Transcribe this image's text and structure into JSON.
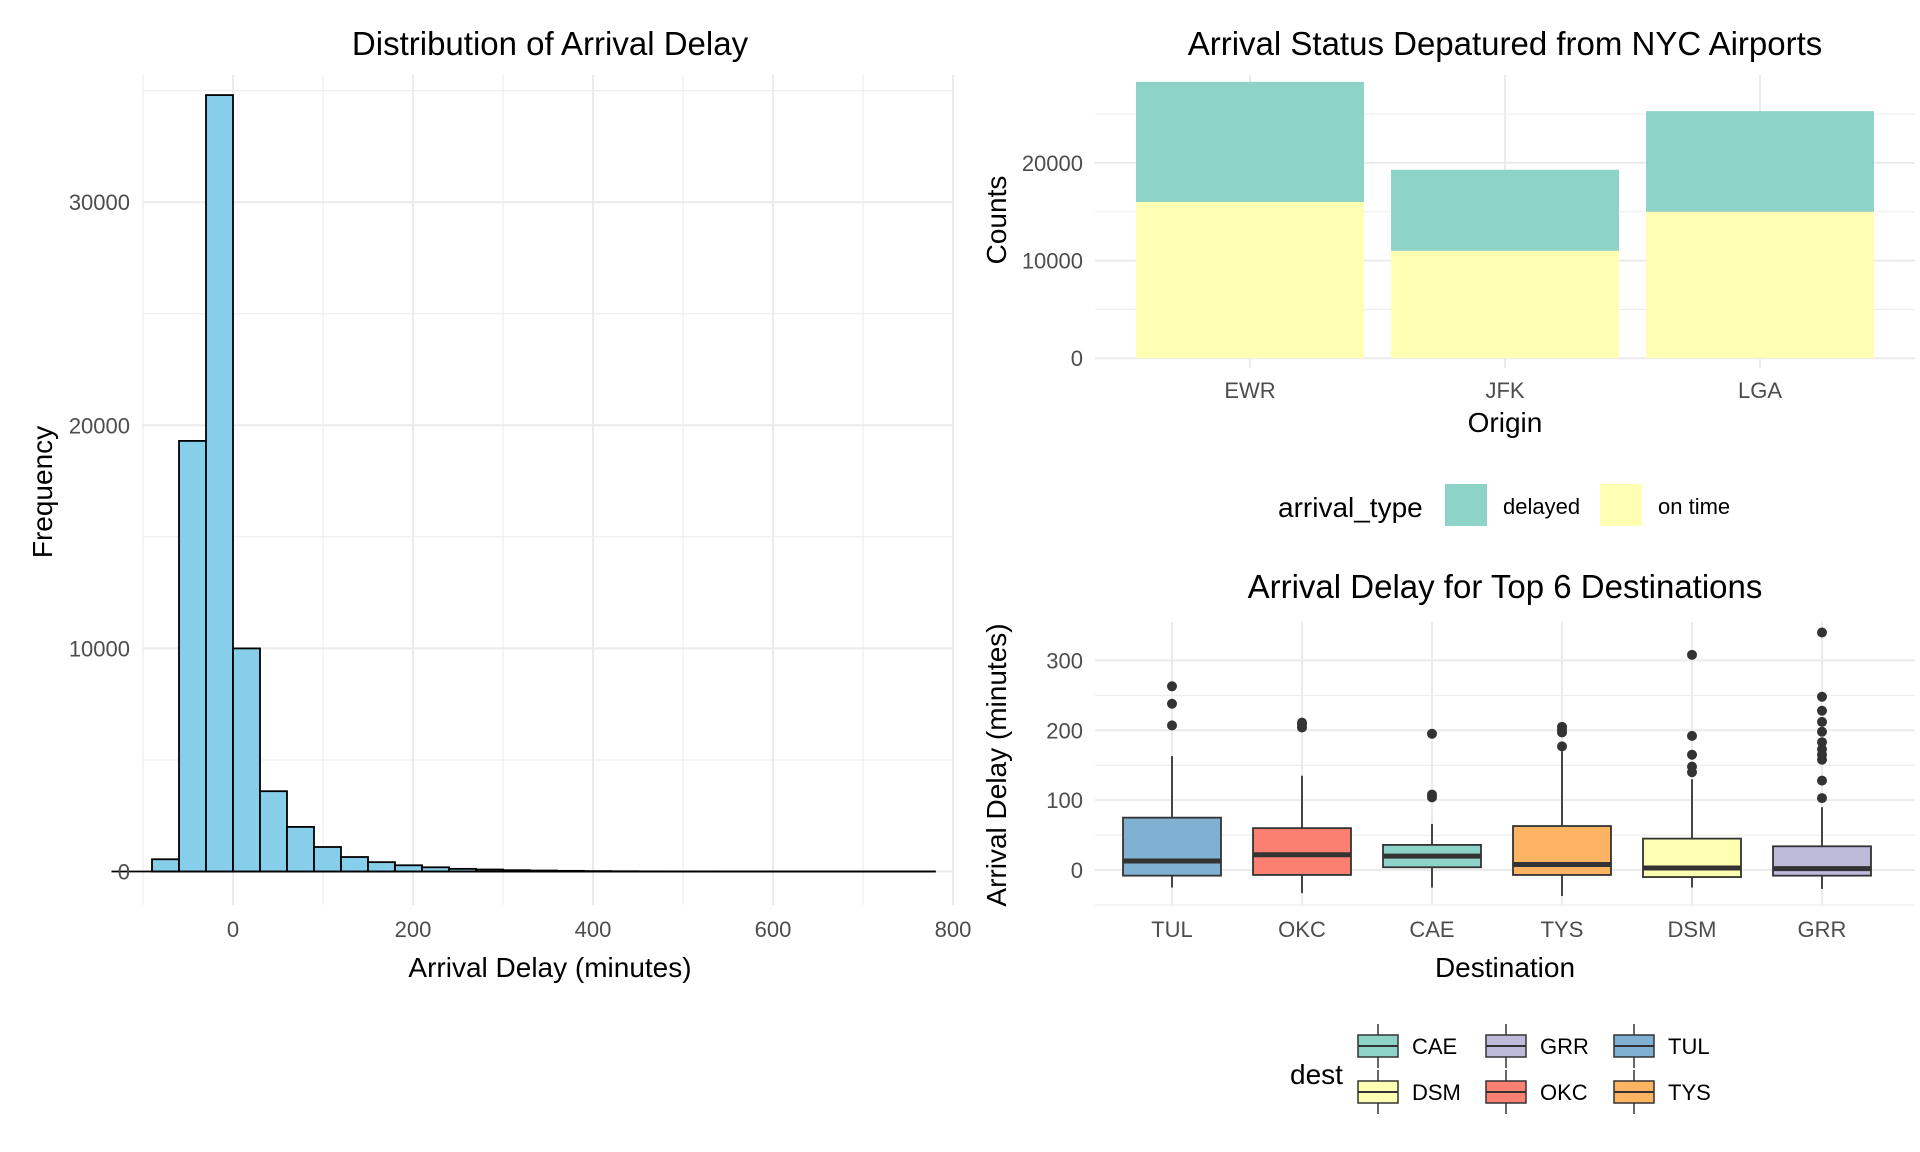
{
  "chart_data": [
    {
      "type": "histogram",
      "title": "Distribution of Arrival Delay",
      "xlabel": "Arrival Delay (minutes)",
      "ylabel": "Frequency",
      "xlim": [
        -100,
        800
      ],
      "ylim": [
        0,
        35000
      ],
      "x_ticks": [
        0,
        200,
        400,
        600,
        800
      ],
      "y_ticks": [
        0,
        10000,
        20000,
        30000
      ],
      "fill_color": "#87CEEB",
      "grid": true,
      "bins": [
        {
          "x0": -90,
          "x1": -60,
          "count": 550
        },
        {
          "x0": -60,
          "x1": -30,
          "count": 19300
        },
        {
          "x0": -30,
          "x1": 0,
          "count": 34800
        },
        {
          "x0": 0,
          "x1": 30,
          "count": 10000
        },
        {
          "x0": 30,
          "x1": 60,
          "count": 3600
        },
        {
          "x0": 60,
          "x1": 90,
          "count": 2000
        },
        {
          "x0": 90,
          "x1": 120,
          "count": 1100
        },
        {
          "x0": 120,
          "x1": 150,
          "count": 650
        },
        {
          "x0": 150,
          "x1": 180,
          "count": 420
        },
        {
          "x0": 180,
          "x1": 210,
          "count": 280
        },
        {
          "x0": 210,
          "x1": 240,
          "count": 190
        },
        {
          "x0": 240,
          "x1": 270,
          "count": 120
        },
        {
          "x0": 270,
          "x1": 300,
          "count": 90
        },
        {
          "x0": 300,
          "x1": 330,
          "count": 60
        },
        {
          "x0": 330,
          "x1": 360,
          "count": 45
        },
        {
          "x0": 360,
          "x1": 390,
          "count": 30
        },
        {
          "x0": 390,
          "x1": 420,
          "count": 20
        },
        {
          "x0": 420,
          "x1": 450,
          "count": 12
        },
        {
          "x0": 450,
          "x1": 480,
          "count": 8
        },
        {
          "x0": 480,
          "x1": 510,
          "count": 5
        },
        {
          "x0": 510,
          "x1": 540,
          "count": 4
        },
        {
          "x0": 540,
          "x1": 570,
          "count": 3
        },
        {
          "x0": 570,
          "x1": 600,
          "count": 2
        },
        {
          "x0": 600,
          "x1": 630,
          "count": 2
        },
        {
          "x0": 630,
          "x1": 660,
          "count": 1
        },
        {
          "x0": 660,
          "x1": 690,
          "count": 1
        },
        {
          "x0": 690,
          "x1": 720,
          "count": 1
        },
        {
          "x0": 720,
          "x1": 750,
          "count": 1
        },
        {
          "x0": 750,
          "x1": 780,
          "count": 1
        }
      ]
    },
    {
      "type": "bar",
      "stacked": true,
      "title": "Arrival Status Depatured from NYC Airports",
      "xlabel": "Origin",
      "ylabel": "Counts",
      "categories": [
        "EWR",
        "JFK",
        "LGA"
      ],
      "ylim": [
        0,
        28500
      ],
      "y_ticks": [
        0,
        10000,
        20000
      ],
      "series": [
        {
          "name": "on time",
          "color": "#FFFFB3",
          "values": [
            16000,
            11000,
            15000
          ]
        },
        {
          "name": "delayed",
          "color": "#8DD3C7",
          "values": [
            12300,
            8300,
            10300
          ]
        }
      ],
      "legend": {
        "title": "arrival_type",
        "position": "bottom",
        "entries": [
          "delayed",
          "on time"
        ]
      }
    },
    {
      "type": "boxplot",
      "title": "Arrival Delay for Top 6 Destinations",
      "xlabel": "Destination",
      "ylabel": "Arrival Delay (minutes)",
      "categories": [
        "TUL",
        "OKC",
        "CAE",
        "TYS",
        "DSM",
        "GRR"
      ],
      "ylim": [
        -50,
        350
      ],
      "y_ticks": [
        0,
        100,
        200,
        300
      ],
      "boxes": [
        {
          "name": "TUL",
          "color": "#80B1D3",
          "lower_whisker": -25,
          "q1": -8,
          "median": 13,
          "q3": 75,
          "upper_whisker": 163,
          "outliers": [
            207,
            238,
            263
          ]
        },
        {
          "name": "OKC",
          "color": "#FB8072",
          "lower_whisker": -33,
          "q1": -7,
          "median": 22,
          "q3": 60,
          "upper_whisker": 135,
          "outliers": [
            204,
            208,
            211
          ]
        },
        {
          "name": "CAE",
          "color": "#8DD3C7",
          "lower_whisker": -25,
          "q1": 4,
          "median": 20,
          "q3": 36,
          "upper_whisker": 66,
          "outliers": [
            104,
            108,
            195
          ]
        },
        {
          "name": "TYS",
          "color": "#FDB462",
          "lower_whisker": -37,
          "q1": -7,
          "median": 8,
          "q3": 63,
          "upper_whisker": 170,
          "outliers": [
            177,
            197,
            201,
            205
          ]
        },
        {
          "name": "DSM",
          "color": "#FFFFB3",
          "lower_whisker": -25,
          "q1": -10,
          "median": 3,
          "q3": 45,
          "upper_whisker": 130,
          "outliers": [
            140,
            148,
            165,
            192,
            308
          ]
        },
        {
          "name": "GRR",
          "color": "#BEBADA",
          "lower_whisker": -27,
          "q1": -8,
          "median": 2,
          "q3": 34,
          "upper_whisker": 90,
          "outliers": [
            103,
            128,
            158,
            165,
            173,
            183,
            198,
            212,
            228,
            248,
            340
          ]
        }
      ],
      "legend": {
        "title": "dest",
        "position": "bottom",
        "entries": [
          {
            "name": "CAE",
            "color": "#8DD3C7"
          },
          {
            "name": "GRR",
            "color": "#BEBADA"
          },
          {
            "name": "TUL",
            "color": "#80B1D3"
          },
          {
            "name": "DSM",
            "color": "#FFFFB3"
          },
          {
            "name": "OKC",
            "color": "#FB8072"
          },
          {
            "name": "TYS",
            "color": "#FDB462"
          }
        ]
      }
    }
  ]
}
